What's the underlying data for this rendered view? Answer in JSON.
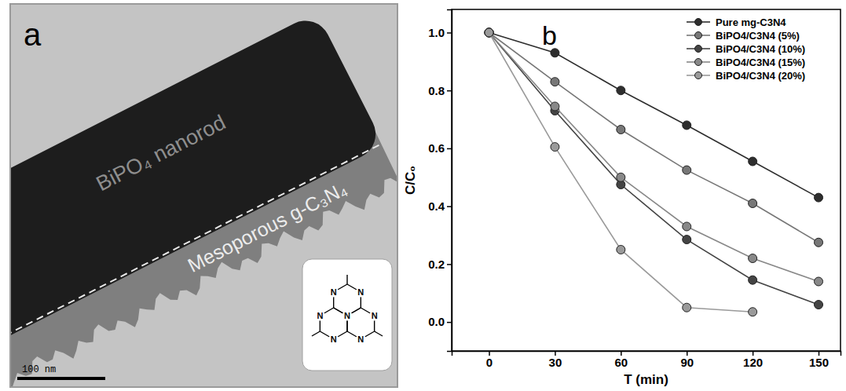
{
  "figure": {
    "panel_a": {
      "letter": "a",
      "labels": [
        "BiPO₄ nanorod",
        "Mesoporous g-C₃N₄"
      ],
      "scale_bar": "100 nm",
      "inset_atom_labels": [
        "N",
        "N",
        "N",
        "N",
        "N",
        "N",
        "N"
      ]
    },
    "panel_b": {
      "letter": "b"
    }
  },
  "chart_data": {
    "type": "line",
    "x_label": "T (min)",
    "y_label": "C/C₀",
    "x": [
      0,
      30,
      60,
      90,
      120,
      150
    ],
    "series": [
      {
        "name": "Pure mg-C3N4",
        "color": "#2e2e2e",
        "marker": "circle",
        "values": [
          1.0,
          0.93,
          0.8,
          0.68,
          0.555,
          0.43
        ]
      },
      {
        "name": "BiPO4/C3N4 (5%)",
        "color": "#777777",
        "marker": "circle",
        "values": [
          1.0,
          0.83,
          0.665,
          0.525,
          0.41,
          0.275
        ]
      },
      {
        "name": "BiPO4/C3N4 (10%)",
        "color": "#444444",
        "marker": "circle",
        "values": [
          1.0,
          0.73,
          0.475,
          0.285,
          0.145,
          0.06
        ]
      },
      {
        "name": "BiPO4/C3N4 (15%)",
        "color": "#888888",
        "marker": "circle",
        "values": [
          1.0,
          0.745,
          0.5,
          0.33,
          0.22,
          0.14
        ]
      },
      {
        "name": "BiPO4/C3N4 (20%)",
        "color": "#9a9a9a",
        "marker": "circle",
        "values": [
          1.0,
          0.605,
          0.25,
          0.05,
          0.035,
          null
        ]
      }
    ],
    "xlim": [
      -17,
      160
    ],
    "xticks": [
      0,
      30,
      60,
      90,
      120,
      150
    ],
    "ylim": [
      -0.1,
      1.08
    ],
    "yticks": [
      {
        "value": 0,
        "label": "0.0"
      },
      0.2,
      0.4,
      0.6,
      0.8,
      {
        "value": 1,
        "label": "1.0"
      }
    ],
    "legend": "top-right",
    "grid": false
  }
}
